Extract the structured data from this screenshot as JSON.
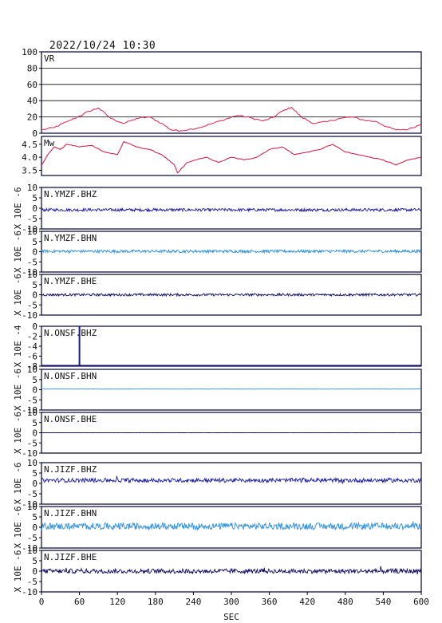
{
  "title": "2022/10/24  10:30",
  "xlabel": "SEC",
  "colors": {
    "frame": "#000033",
    "vr_line": "#e0204a",
    "mw_line": "#d0103a",
    "dark_blue": "#1a1aa0",
    "light_blue": "#2a8ee0",
    "navy": "#0a0a60"
  },
  "chart_data": [
    {
      "type": "line",
      "label": "VR",
      "ylim": [
        0,
        100
      ],
      "yticks": [
        "0",
        "20",
        "40",
        "60",
        "80",
        "100"
      ],
      "grid": true,
      "x": [
        0,
        20,
        40,
        60,
        75,
        90,
        110,
        130,
        150,
        170,
        190,
        205,
        220,
        250,
        270,
        290,
        310,
        330,
        350,
        365,
        380,
        395,
        410,
        430,
        450,
        470,
        490,
        510,
        530,
        545,
        560,
        580,
        600
      ],
      "values": [
        4,
        7,
        14,
        21,
        27,
        31,
        18,
        12,
        18,
        20,
        12,
        4,
        3,
        7,
        12,
        17,
        22,
        19,
        15,
        19,
        27,
        32,
        20,
        12,
        14,
        18,
        20,
        16,
        14,
        8,
        4,
        5,
        11
      ]
    },
    {
      "type": "line",
      "label": "Mw",
      "ylim": [
        3.3,
        4.8
      ],
      "yticks": [
        "3.5",
        "4.0",
        "4.5"
      ],
      "grid": false,
      "x": [
        0,
        10,
        20,
        30,
        40,
        60,
        80,
        100,
        120,
        130,
        150,
        170,
        190,
        200,
        210,
        215,
        230,
        260,
        280,
        300,
        320,
        340,
        360,
        380,
        400,
        420,
        440,
        460,
        480,
        500,
        520,
        540,
        560,
        580,
        600
      ],
      "values": [
        3.7,
        4.1,
        4.4,
        4.3,
        4.5,
        4.4,
        4.45,
        4.2,
        4.1,
        4.6,
        4.4,
        4.3,
        4.1,
        3.9,
        3.7,
        3.4,
        3.8,
        4.0,
        3.8,
        4.0,
        3.9,
        4.0,
        4.3,
        4.4,
        4.1,
        4.2,
        4.3,
        4.5,
        4.2,
        4.1,
        4.0,
        3.9,
        3.7,
        3.9,
        4.0
      ]
    },
    {
      "type": "line",
      "label": "N.YMZF.BHZ",
      "color": "#1a1aa0",
      "ylim": [
        -10,
        10
      ],
      "yticks": [
        "-10",
        "-5",
        "0",
        "5",
        "10"
      ],
      "unit_label": "X 10E -6",
      "baseline": -0.8,
      "noise": 0.7
    },
    {
      "type": "line",
      "label": "N.YMZF.BHN",
      "color": "#2a8ee0",
      "ylim": [
        -10,
        10
      ],
      "yticks": [
        "-10",
        "-5",
        "0",
        "5",
        "10"
      ],
      "unit_label": "X 10E -6",
      "baseline": 0.2,
      "noise": 0.7
    },
    {
      "type": "line",
      "label": "N.YMZF.BHE",
      "color": "#0a0a60",
      "ylim": [
        -10,
        10
      ],
      "yticks": [
        "-10",
        "-5",
        "0",
        "5",
        "10"
      ],
      "unit_label": "X 10E -6",
      "baseline": 0.0,
      "noise": 0.6
    },
    {
      "type": "line",
      "label": "N.ONSF.BHZ",
      "color": "#1a1aa0",
      "ylim": [
        -8,
        0
      ],
      "yticks": [
        "-8",
        "-6",
        "-4",
        "-2",
        "0"
      ],
      "unit_label": "X 10E -4",
      "baseline": -7.9,
      "noise": 0.0,
      "spike": {
        "x": 60,
        "value": 0
      }
    },
    {
      "type": "line",
      "label": "N.ONSF.BHN",
      "color": "#2a8ee0",
      "ylim": [
        -10,
        10
      ],
      "yticks": [
        "-10",
        "-5",
        "0",
        "5",
        "10"
      ],
      "unit_label": "X 10E -6",
      "baseline": 0.3,
      "noise": 0.05
    },
    {
      "type": "line",
      "label": "N.ONSF.BHE",
      "color": "#0a0a60",
      "ylim": [
        -10,
        10
      ],
      "yticks": [
        "-10",
        "-5",
        "0",
        "5",
        "10"
      ],
      "unit_label": "X 10E -6",
      "baseline": 0.0,
      "noise": 0.05
    },
    {
      "type": "line",
      "label": "N.JIZF.BHZ",
      "color": "#1a1aa0",
      "ylim": [
        -10,
        10
      ],
      "yticks": [
        "-10",
        "-5",
        "0",
        "5",
        "10"
      ],
      "unit_label": "X 10E -6",
      "baseline": 1.5,
      "noise": 1.0
    },
    {
      "type": "line",
      "label": "N.JIZF.BHN",
      "color": "#2a8ee0",
      "ylim": [
        -10,
        10
      ],
      "yticks": [
        "-10",
        "-5",
        "0",
        "5",
        "10"
      ],
      "unit_label": "X 10E -6",
      "baseline": 0.5,
      "noise": 1.6
    },
    {
      "type": "line",
      "label": "N.JIZF.BHE",
      "color": "#0a0a60",
      "ylim": [
        -10,
        10
      ],
      "yticks": [
        "-10",
        "-5",
        "0",
        "5",
        "10"
      ],
      "unit_label": "X 10E -6",
      "baseline": 0.0,
      "noise": 1.1
    }
  ],
  "x_axis": {
    "xlim": [
      0,
      600
    ],
    "ticks": [
      "0",
      "60",
      "120",
      "180",
      "240",
      "300",
      "360",
      "420",
      "480",
      "540",
      "600"
    ]
  }
}
